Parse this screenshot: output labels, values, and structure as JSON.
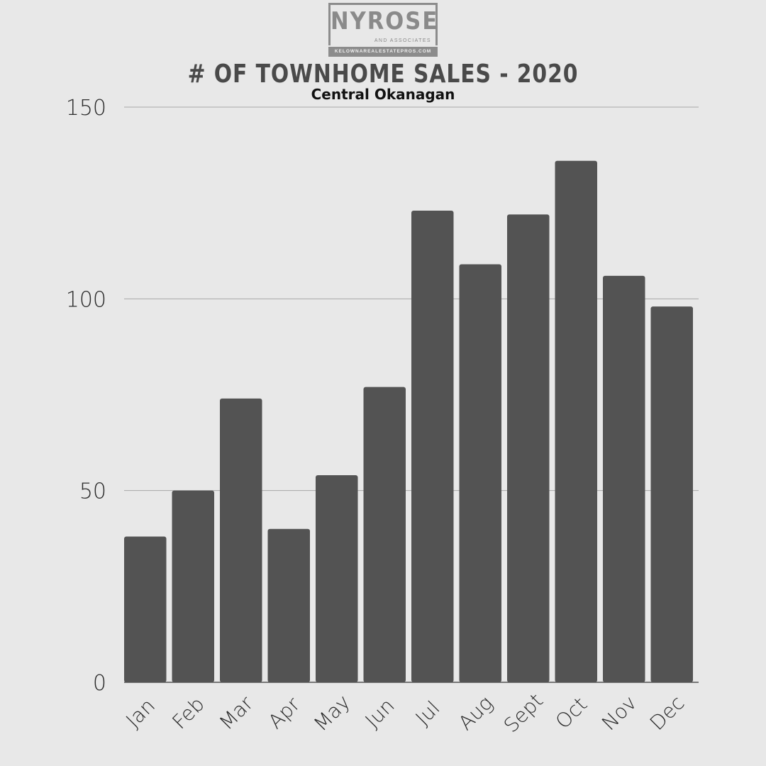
{
  "logo": {
    "name": "NYROSE",
    "tagline": "AND ASSOCIATES",
    "url": "KELOWNAREALESTATEPROS.COM"
  },
  "header": {
    "title": "# OF TOWNHOME SALES - 2020",
    "subtitle": "Central Okanagan"
  },
  "colors": {
    "background": "#e8e8e8",
    "bar": "#535353",
    "grid": "#a8a8a8",
    "text": "#2b2b2b"
  },
  "chart_data": {
    "type": "bar",
    "title": "# OF TOWNHOME SALES - 2020",
    "subtitle": "Central Okanagan",
    "categories": [
      "Jan",
      "Feb",
      "Mar",
      "Apr",
      "May",
      "Jun",
      "Jul",
      "Aug",
      "Sept",
      "Oct",
      "Nov",
      "Dec"
    ],
    "values": [
      38,
      50,
      74,
      40,
      54,
      77,
      123,
      109,
      122,
      136,
      106,
      98
    ],
    "ylim": [
      0,
      150
    ],
    "yticks": [
      0,
      50,
      100,
      150
    ],
    "xlabel": "",
    "ylabel": "",
    "grid": true,
    "legend": false
  }
}
